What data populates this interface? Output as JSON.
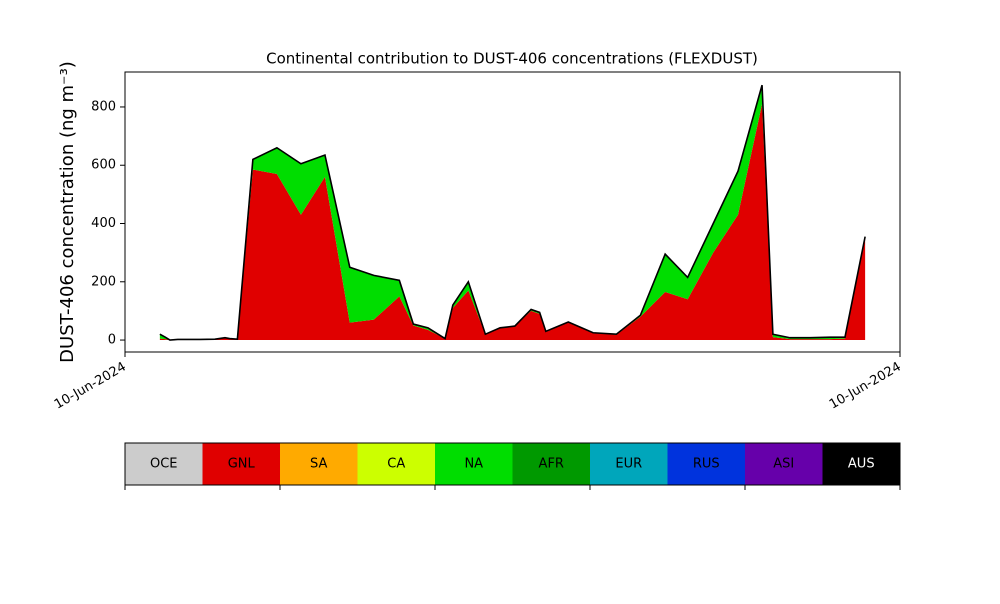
{
  "chart_data": {
    "type": "stacked-area",
    "title": "Continental contribution to DUST-406 concentrations (FLEXDUST)",
    "ylabel": "DUST-406 concentration (ng m⁻³)",
    "x": [
      4.5,
      5.2,
      5.8,
      6.8,
      9.7,
      11.6,
      12.9,
      13.5,
      14.5,
      16.5,
      19.6,
      22.7,
      25.8,
      29.0,
      32.1,
      35.4,
      37.2,
      39.1,
      41.3,
      42.3,
      44.3,
      46.5,
      48.4,
      50.3,
      52.4,
      53.5,
      54.3,
      57.2,
      60.4,
      63.4,
      66.5,
      69.7,
      72.6,
      75.9,
      79.1,
      82.2,
      83.6,
      85.8,
      88.4,
      91.0,
      92.9,
      95.5
    ],
    "series": [
      {
        "name": "GNL",
        "color": "#e00000",
        "values": [
          5,
          3,
          0,
          2,
          2,
          3,
          8,
          5,
          3,
          585,
          570,
          430,
          560,
          60,
          70,
          150,
          50,
          35,
          5,
          110,
          170,
          20,
          40,
          48,
          100,
          90,
          30,
          60,
          25,
          18,
          80,
          165,
          140,
          300,
          430,
          810,
          10,
          3,
          3,
          3,
          5,
          350
        ]
      },
      {
        "name": "NA",
        "color": "#00dd00",
        "values": [
          15,
          7,
          0,
          0,
          0,
          0,
          0,
          0,
          0,
          35,
          90,
          175,
          75,
          190,
          152,
          55,
          5,
          7,
          0,
          10,
          30,
          0,
          2,
          0,
          5,
          5,
          0,
          2,
          0,
          2,
          5,
          130,
          75,
          100,
          150,
          65,
          10,
          5,
          5,
          7,
          5,
          5
        ]
      }
    ],
    "outline_color": "#000000",
    "xlim": [
      0,
      100
    ],
    "xticks": [
      {
        "value": 0,
        "label": "10-Jun-2024"
      },
      {
        "value": 100,
        "label": "10-Jun-2024"
      }
    ],
    "ylim": [
      -41,
      920
    ],
    "yticks": [
      0,
      200,
      400,
      600,
      800
    ],
    "colorbar": {
      "labels": [
        "OCE",
        "GNL",
        "SA",
        "CA",
        "NA",
        "AFR",
        "EUR",
        "RUS",
        "ASI",
        "AUS"
      ],
      "colors": [
        "#cccccc",
        "#e00000",
        "#ffaa00",
        "#ccff00",
        "#00dd00",
        "#009900",
        "#00a6bb",
        "#0033dd",
        "#6600aa",
        "#000000"
      ]
    }
  }
}
